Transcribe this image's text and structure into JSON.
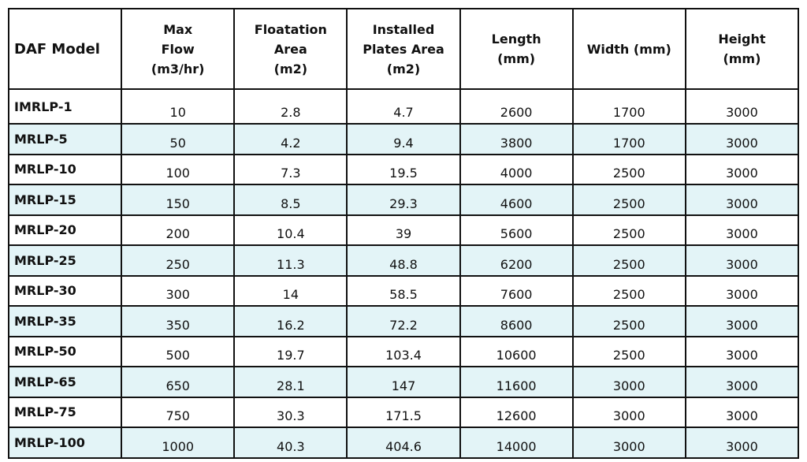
{
  "table": {
    "header": [
      "DAF Model",
      "Max\nFlow\n(m3/hr)",
      "Floatation\nArea\n(m2)",
      "Installed\nPlates Area\n(m2)",
      "Length\n(mm)",
      "Width (mm)",
      "Height\n(mm)"
    ],
    "rows": [
      [
        "IMRLP-1",
        10,
        2.8,
        4.7,
        2600,
        1700,
        3000
      ],
      [
        "MRLP-5",
        50,
        4.2,
        9.4,
        3800,
        1700,
        3000
      ],
      [
        "MRLP-10",
        100,
        7.3,
        19.5,
        4000,
        2500,
        3000
      ],
      [
        "MRLP-15",
        150,
        8.5,
        29.3,
        4600,
        2500,
        3000
      ],
      [
        "MRLP-20",
        200,
        10.4,
        39,
        5600,
        2500,
        3000
      ],
      [
        "MRLP-25",
        250,
        11.3,
        48.8,
        6200,
        2500,
        3000
      ],
      [
        "MRLP-30",
        300,
        14,
        58.5,
        7600,
        2500,
        3000
      ],
      [
        "MRLP-35",
        350,
        16.2,
        72.2,
        8600,
        2500,
        3000
      ],
      [
        "MRLP-50",
        500,
        19.7,
        103.4,
        10600,
        2500,
        3000
      ],
      [
        "MRLP-65",
        650,
        28.1,
        147,
        11600,
        3000,
        3000
      ],
      [
        "MRLP-75",
        750,
        30.3,
        171.5,
        12600,
        3000,
        3000
      ],
      [
        "MRLP-100",
        1000,
        40.3,
        404.6,
        14000,
        3000,
        3000
      ]
    ]
  }
}
